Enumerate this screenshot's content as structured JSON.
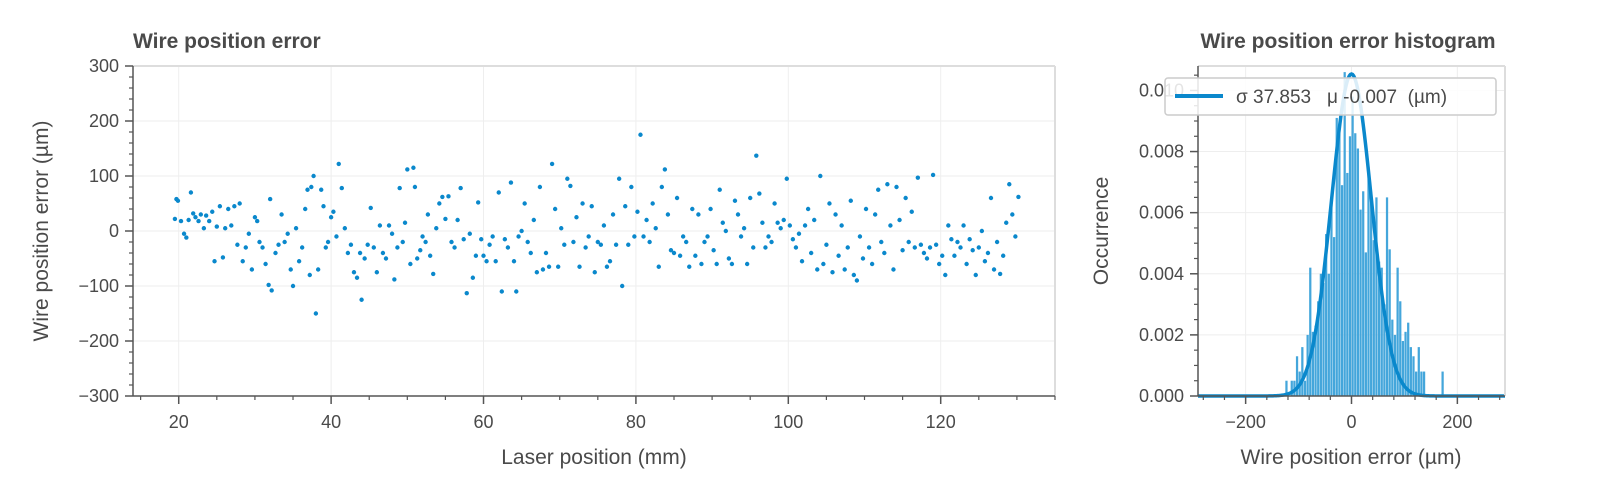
{
  "chart_data": [
    {
      "type": "scatter",
      "title": "Wire position error",
      "xlabel": "Laser position (mm)",
      "ylabel": "Wire position error (µm)",
      "xlim": [
        14,
        135
      ],
      "ylim": [
        -300,
        300
      ],
      "xticks": [
        20,
        40,
        60,
        80,
        100,
        120
      ],
      "yticks": [
        -300,
        -200,
        -100,
        0,
        100,
        200,
        300
      ],
      "xtick_labels": [
        "20",
        "40",
        "60",
        "80",
        "100",
        "120"
      ],
      "ytick_labels": [
        "−300",
        "−200",
        "−100",
        "0",
        "100",
        "200",
        "300"
      ],
      "grid": true,
      "color": "#0a88cc",
      "points": [
        [
          19.5,
          22
        ],
        [
          19.7,
          58
        ],
        [
          19.9,
          55
        ],
        [
          20.3,
          18
        ],
        [
          20.7,
          -5
        ],
        [
          21.0,
          -12
        ],
        [
          21.3,
          20
        ],
        [
          21.6,
          70
        ],
        [
          21.9,
          32
        ],
        [
          22.2,
          25
        ],
        [
          22.6,
          18
        ],
        [
          22.9,
          30
        ],
        [
          23.3,
          5
        ],
        [
          23.6,
          28
        ],
        [
          24.0,
          18
        ],
        [
          24.4,
          35
        ],
        [
          24.7,
          -55
        ],
        [
          25.0,
          8
        ],
        [
          25.4,
          45
        ],
        [
          25.8,
          -48
        ],
        [
          26.1,
          5
        ],
        [
          26.5,
          40
        ],
        [
          26.9,
          10
        ],
        [
          27.3,
          45
        ],
        [
          27.7,
          -25
        ],
        [
          28.0,
          50
        ],
        [
          28.4,
          -55
        ],
        [
          28.8,
          -30
        ],
        [
          29.2,
          -5
        ],
        [
          29.6,
          -70
        ],
        [
          30.0,
          25
        ],
        [
          30.3,
          18
        ],
        [
          30.6,
          -20
        ],
        [
          31.0,
          -30
        ],
        [
          31.4,
          -60
        ],
        [
          31.8,
          -98
        ],
        [
          32.0,
          58
        ],
        [
          32.2,
          -108
        ],
        [
          32.7,
          -40
        ],
        [
          33.1,
          -25
        ],
        [
          33.5,
          30
        ],
        [
          33.9,
          -20
        ],
        [
          34.3,
          -5
        ],
        [
          34.7,
          -70
        ],
        [
          35.0,
          -100
        ],
        [
          35.4,
          5
        ],
        [
          35.8,
          -55
        ],
        [
          36.2,
          -30
        ],
        [
          36.6,
          40
        ],
        [
          36.9,
          75
        ],
        [
          37.2,
          -80
        ],
        [
          37.4,
          80
        ],
        [
          37.7,
          100
        ],
        [
          38.0,
          -150
        ],
        [
          38.3,
          -70
        ],
        [
          38.7,
          75
        ],
        [
          39.0,
          45
        ],
        [
          39.3,
          -30
        ],
        [
          39.6,
          -20
        ],
        [
          40.0,
          25
        ],
        [
          40.3,
          35
        ],
        [
          40.7,
          -10
        ],
        [
          41.0,
          122
        ],
        [
          41.4,
          78
        ],
        [
          41.8,
          5
        ],
        [
          42.2,
          -40
        ],
        [
          42.6,
          -25
        ],
        [
          43.0,
          -75
        ],
        [
          43.4,
          -85
        ],
        [
          43.8,
          -40
        ],
        [
          44.0,
          -125
        ],
        [
          44.4,
          -50
        ],
        [
          44.8,
          -25
        ],
        [
          45.2,
          42
        ],
        [
          45.6,
          -30
        ],
        [
          46.0,
          -75
        ],
        [
          46.4,
          10
        ],
        [
          46.8,
          -40
        ],
        [
          47.2,
          -50
        ],
        [
          47.6,
          10
        ],
        [
          48.0,
          -5
        ],
        [
          48.3,
          -88
        ],
        [
          48.7,
          -30
        ],
        [
          49.0,
          78
        ],
        [
          49.4,
          -20
        ],
        [
          49.7,
          15
        ],
        [
          50.0,
          112
        ],
        [
          50.4,
          -60
        ],
        [
          50.8,
          115
        ],
        [
          51.0,
          80
        ],
        [
          51.3,
          -50
        ],
        [
          51.7,
          -35
        ],
        [
          52.0,
          -10
        ],
        [
          52.4,
          -20
        ],
        [
          52.7,
          30
        ],
        [
          53.0,
          -45
        ],
        [
          53.4,
          -78
        ],
        [
          53.8,
          5
        ],
        [
          54.2,
          50
        ],
        [
          54.6,
          62
        ],
        [
          55.0,
          22
        ],
        [
          55.4,
          63
        ],
        [
          55.8,
          -20
        ],
        [
          56.2,
          -30
        ],
        [
          56.6,
          20
        ],
        [
          57.0,
          78
        ],
        [
          57.4,
          -15
        ],
        [
          57.8,
          -113
        ],
        [
          58.2,
          -5
        ],
        [
          58.6,
          -85
        ],
        [
          59.0,
          -45
        ],
        [
          59.3,
          52
        ],
        [
          59.7,
          -15
        ],
        [
          60.0,
          -45
        ],
        [
          60.4,
          -55
        ],
        [
          60.8,
          -25
        ],
        [
          61.2,
          -10
        ],
        [
          61.6,
          -55
        ],
        [
          62.0,
          70
        ],
        [
          62.4,
          -110
        ],
        [
          62.8,
          -15
        ],
        [
          63.2,
          -30
        ],
        [
          63.6,
          88
        ],
        [
          64.0,
          -55
        ],
        [
          64.3,
          -110
        ],
        [
          64.6,
          -10
        ],
        [
          65.0,
          0
        ],
        [
          65.4,
          50
        ],
        [
          65.8,
          -20
        ],
        [
          66.2,
          -40
        ],
        [
          66.6,
          20
        ],
        [
          67.0,
          -75
        ],
        [
          67.4,
          80
        ],
        [
          67.8,
          -70
        ],
        [
          68.2,
          -40
        ],
        [
          68.6,
          -65
        ],
        [
          69.0,
          122
        ],
        [
          69.4,
          40
        ],
        [
          69.8,
          -65
        ],
        [
          70.2,
          5
        ],
        [
          70.6,
          -25
        ],
        [
          71.0,
          95
        ],
        [
          71.4,
          82
        ],
        [
          71.8,
          -20
        ],
        [
          72.2,
          25
        ],
        [
          72.6,
          -65
        ],
        [
          73.0,
          50
        ],
        [
          73.4,
          -30
        ],
        [
          73.8,
          -10
        ],
        [
          74.2,
          45
        ],
        [
          74.6,
          -75
        ],
        [
          75.0,
          -20
        ],
        [
          75.4,
          -25
        ],
        [
          75.8,
          10
        ],
        [
          76.2,
          -65
        ],
        [
          76.6,
          -55
        ],
        [
          77.0,
          30
        ],
        [
          77.4,
          -25
        ],
        [
          77.8,
          95
        ],
        [
          78.2,
          -100
        ],
        [
          78.6,
          45
        ],
        [
          79.0,
          -25
        ],
        [
          79.4,
          80
        ],
        [
          79.8,
          -10
        ],
        [
          80.2,
          35
        ],
        [
          80.6,
          175
        ],
        [
          81.0,
          -10
        ],
        [
          81.4,
          20
        ],
        [
          81.8,
          -20
        ],
        [
          82.2,
          50
        ],
        [
          82.6,
          5
        ],
        [
          83.0,
          -65
        ],
        [
          83.4,
          80
        ],
        [
          83.8,
          112
        ],
        [
          84.2,
          30
        ],
        [
          84.6,
          -35
        ],
        [
          85.0,
          -40
        ],
        [
          85.4,
          60
        ],
        [
          85.8,
          -45
        ],
        [
          86.2,
          -10
        ],
        [
          86.6,
          -20
        ],
        [
          87.0,
          -65
        ],
        [
          87.4,
          40
        ],
        [
          87.8,
          -45
        ],
        [
          88.2,
          30
        ],
        [
          88.6,
          -60
        ],
        [
          89.0,
          -20
        ],
        [
          89.4,
          -10
        ],
        [
          89.8,
          40
        ],
        [
          90.2,
          -35
        ],
        [
          90.6,
          -60
        ],
        [
          91.0,
          75
        ],
        [
          91.4,
          15
        ],
        [
          91.8,
          0
        ],
        [
          92.2,
          -50
        ],
        [
          92.6,
          -60
        ],
        [
          93.0,
          55
        ],
        [
          93.4,
          30
        ],
        [
          93.8,
          -10
        ],
        [
          94.2,
          5
        ],
        [
          94.6,
          -60
        ],
        [
          95.0,
          60
        ],
        [
          95.4,
          -30
        ],
        [
          95.8,
          137
        ],
        [
          96.2,
          68
        ],
        [
          96.6,
          15
        ],
        [
          97.0,
          -30
        ],
        [
          97.4,
          -10
        ],
        [
          97.8,
          -20
        ],
        [
          98.2,
          50
        ],
        [
          98.6,
          15
        ],
        [
          99.0,
          5
        ],
        [
          99.4,
          20
        ],
        [
          99.8,
          95
        ],
        [
          100.2,
          10
        ],
        [
          100.6,
          -15
        ],
        [
          101.0,
          -30
        ],
        [
          101.4,
          -5
        ],
        [
          101.8,
          -55
        ],
        [
          102.2,
          10
        ],
        [
          102.6,
          40
        ],
        [
          103.0,
          -40
        ],
        [
          103.4,
          20
        ],
        [
          103.8,
          -70
        ],
        [
          104.2,
          100
        ],
        [
          104.6,
          -60
        ],
        [
          105.0,
          -25
        ],
        [
          105.4,
          50
        ],
        [
          105.8,
          -75
        ],
        [
          106.2,
          30
        ],
        [
          106.6,
          -45
        ],
        [
          107.0,
          10
        ],
        [
          107.4,
          -70
        ],
        [
          107.8,
          -30
        ],
        [
          108.2,
          55
        ],
        [
          108.6,
          -80
        ],
        [
          109.0,
          -90
        ],
        [
          109.4,
          -10
        ],
        [
          109.8,
          -50
        ],
        [
          110.2,
          40
        ],
        [
          110.6,
          -30
        ],
        [
          111.0,
          -60
        ],
        [
          111.4,
          30
        ],
        [
          111.8,
          75
        ],
        [
          112.2,
          -20
        ],
        [
          112.6,
          -40
        ],
        [
          113.0,
          85
        ],
        [
          113.4,
          10
        ],
        [
          113.8,
          -70
        ],
        [
          114.2,
          80
        ],
        [
          114.6,
          20
        ],
        [
          115.0,
          -35
        ],
        [
          115.4,
          60
        ],
        [
          115.8,
          -20
        ],
        [
          116.2,
          35
        ],
        [
          116.6,
          -30
        ],
        [
          117.0,
          97
        ],
        [
          117.4,
          -25
        ],
        [
          117.8,
          -40
        ],
        [
          118.2,
          -50
        ],
        [
          118.6,
          -30
        ],
        [
          119.0,
          102
        ],
        [
          119.4,
          -25
        ],
        [
          119.8,
          -60
        ],
        [
          120.2,
          -45
        ],
        [
          120.6,
          -80
        ],
        [
          121.0,
          10
        ],
        [
          121.4,
          -15
        ],
        [
          121.8,
          -45
        ],
        [
          122.2,
          -20
        ],
        [
          122.6,
          -30
        ],
        [
          123.0,
          10
        ],
        [
          123.4,
          -60
        ],
        [
          123.8,
          -15
        ],
        [
          124.2,
          -35
        ],
        [
          124.6,
          -80
        ],
        [
          125.0,
          -30
        ],
        [
          125.4,
          0
        ],
        [
          125.8,
          -55
        ],
        [
          126.2,
          -40
        ],
        [
          126.6,
          60
        ],
        [
          127.0,
          -70
        ],
        [
          127.4,
          -20
        ],
        [
          127.8,
          -78
        ],
        [
          128.2,
          -45
        ],
        [
          128.6,
          15
        ],
        [
          129.0,
          85
        ],
        [
          129.4,
          30
        ],
        [
          129.8,
          -10
        ],
        [
          130.2,
          62
        ]
      ]
    },
    {
      "type": "bar",
      "subtype": "histogram_with_gaussian_fit",
      "title": "Wire position error histogram",
      "xlabel": "Wire position error (µm)",
      "ylabel": "Occurrence",
      "xlim": [
        -290,
        290
      ],
      "ylim": [
        0,
        0.0108
      ],
      "xticks": [
        -200,
        0,
        200
      ],
      "yticks": [
        0.0,
        0.002,
        0.004,
        0.006,
        0.008,
        0.01
      ],
      "xtick_labels": [
        "−200",
        "0",
        "200"
      ],
      "ytick_labels": [
        "0.000",
        "0.002",
        "0.004",
        "0.006",
        "0.008",
        "0.010"
      ],
      "grid": true,
      "color": "#44a6db",
      "fit_color": "#0a88cc",
      "bin_width": 5,
      "bin_starts": [
        -150,
        -145,
        -140,
        -135,
        -130,
        -125,
        -120,
        -115,
        -110,
        -105,
        -100,
        -95,
        -90,
        -85,
        -80,
        -75,
        -70,
        -65,
        -60,
        -55,
        -50,
        -45,
        -40,
        -35,
        -30,
        -25,
        -20,
        -15,
        -10,
        -5,
        0,
        5,
        10,
        15,
        20,
        25,
        30,
        35,
        40,
        45,
        50,
        55,
        60,
        65,
        70,
        75,
        80,
        85,
        90,
        95,
        100,
        105,
        110,
        115,
        120,
        125,
        130,
        135,
        140,
        145,
        150,
        155,
        160,
        165,
        170
      ],
      "values": [
        0,
        0,
        0,
        0,
        0,
        0.0005,
        0,
        0.0005,
        0.0005,
        0.0013,
        0.0008,
        0.0016,
        0.0005,
        0.002,
        0.0042,
        0.0021,
        0.0023,
        0.0031,
        0.004,
        0.0037,
        0.0053,
        0.004,
        0.0064,
        0.0052,
        0.0091,
        0.0086,
        0.0069,
        0.0106,
        0.0073,
        0.0085,
        0.0098,
        0.0086,
        0.0081,
        0.0061,
        0.0067,
        0.0047,
        0.0075,
        0.0063,
        0.0051,
        0.0065,
        0.0044,
        0.0042,
        0.003,
        0.0065,
        0.0048,
        0.0025,
        0.002,
        0.0042,
        0.0031,
        0.0018,
        0.0021,
        0.0024,
        0.0016,
        0.0013,
        0.0008,
        0.0016,
        0.0008,
        0.0008,
        0,
        0,
        0,
        0,
        0,
        0,
        0.0008
      ],
      "fit": {
        "sigma": 37.853,
        "mu": -0.007
      },
      "legend": {
        "placement": "top-right",
        "label": "σ 37.853   μ -0.007  (µm)"
      }
    }
  ]
}
